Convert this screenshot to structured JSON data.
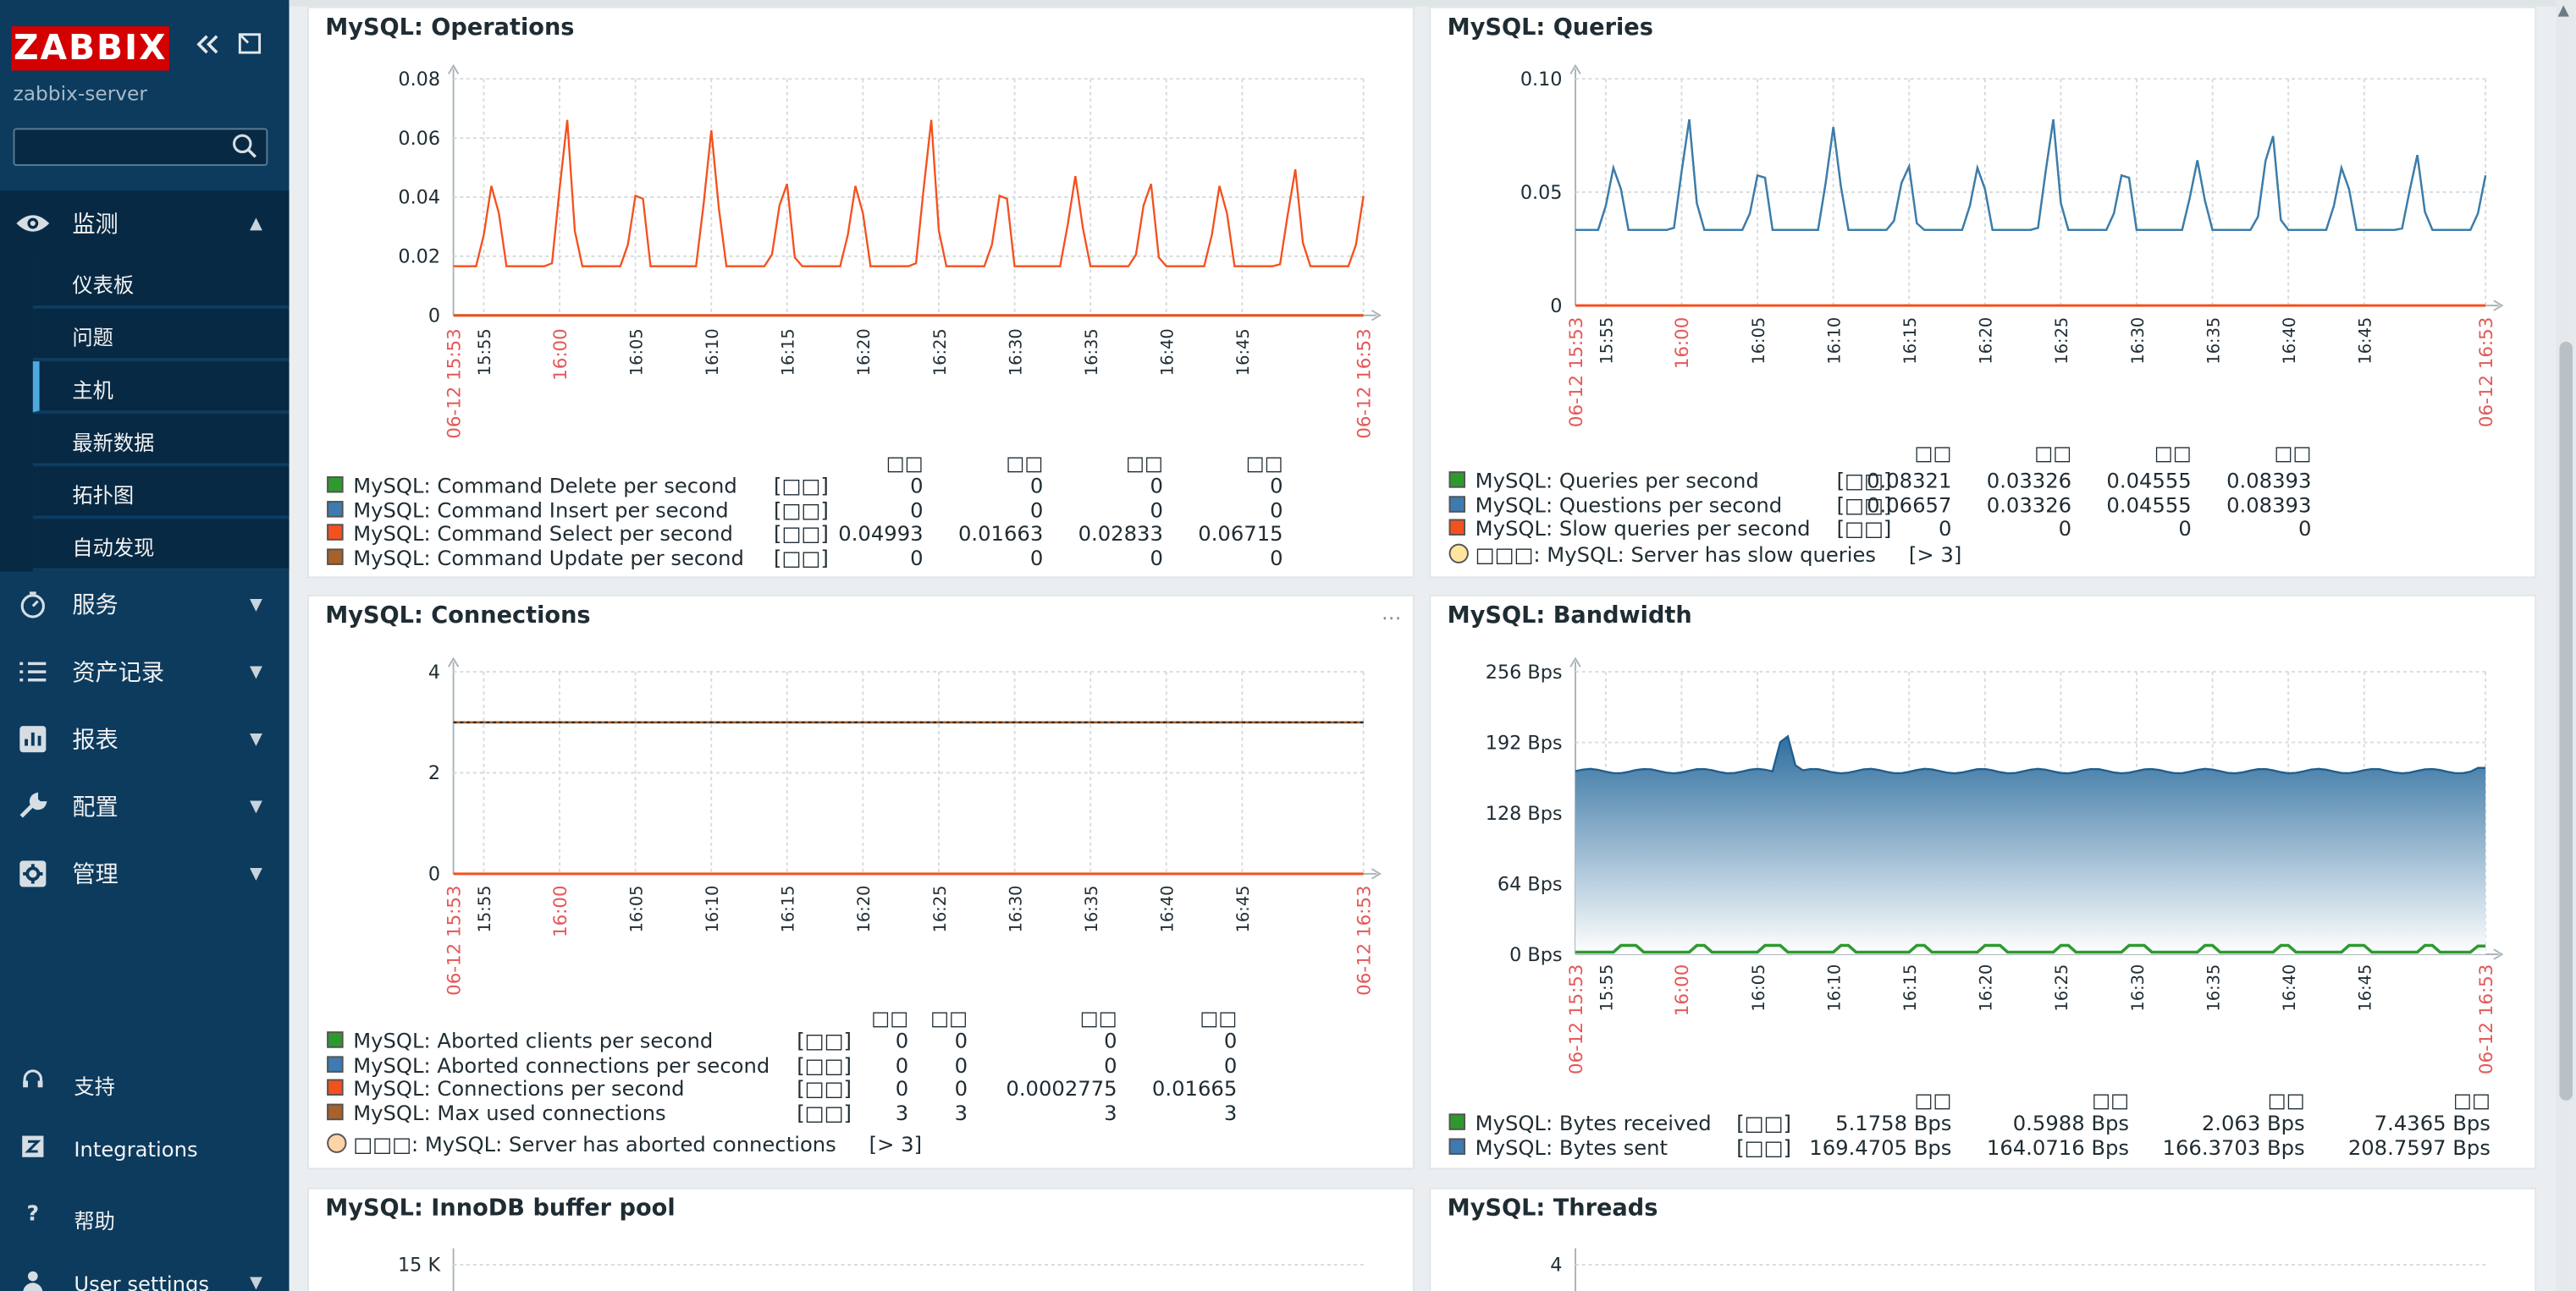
{
  "app": {
    "logo": "ZABBIX",
    "server_name": "zabbix-server"
  },
  "sidebar": {
    "search": {
      "placeholder": "",
      "value": ""
    },
    "monitoring": {
      "label": "监测",
      "items": [
        "仪表板",
        "问题",
        "主机",
        "最新数据",
        "拓扑图",
        "自动发现"
      ],
      "active_item": "主机"
    },
    "menu": [
      {
        "label": "服务",
        "icon": "stopwatch-icon"
      },
      {
        "label": "资产记录",
        "icon": "list-icon"
      },
      {
        "label": "报表",
        "icon": "bar-chart-icon"
      },
      {
        "label": "配置",
        "icon": "wrench-icon"
      },
      {
        "label": "管理",
        "icon": "gear-icon"
      }
    ],
    "footer": [
      {
        "label": "支持",
        "icon": "headset-icon"
      },
      {
        "label": "Integrations",
        "icon": "z-icon"
      },
      {
        "label": "帮助",
        "icon": "help-icon"
      },
      {
        "label": "User settings",
        "icon": "user-icon"
      }
    ]
  },
  "time_axis": {
    "start": "06-12 15:53",
    "end": "06-12 16:53",
    "ticks": [
      "15:55",
      "16:00",
      "16:05",
      "16:10",
      "16:15",
      "16:20",
      "16:25",
      "16:30",
      "16:35",
      "16:40",
      "16:45"
    ],
    "highlight_tick": "16:00"
  },
  "legend_headers": [
    "□□",
    "□□",
    "□□",
    "□□"
  ],
  "legend_function": "[□□]",
  "widgets": {
    "operations": {
      "title": "MySQL: Operations",
      "menu": "⋯",
      "yticks": [
        "0.08",
        "0.06",
        "0.04",
        "0.02",
        "0"
      ],
      "series": [
        {
          "name": "MySQL: Command Delete per second",
          "color": "#2e9a2e",
          "values": [
            "0",
            "0",
            "0",
            "0"
          ]
        },
        {
          "name": "MySQL: Command Insert per second",
          "color": "#3e7bb0",
          "values": [
            "0",
            "0",
            "0",
            "0"
          ]
        },
        {
          "name": "MySQL: Command Select per second",
          "color": "#f4511e",
          "values": [
            "0.04993",
            "0.01663",
            "0.02833",
            "0.06715"
          ]
        },
        {
          "name": "MySQL: Command Update per second",
          "color": "#a86128",
          "values": [
            "0",
            "0",
            "0",
            "0"
          ]
        }
      ]
    },
    "queries": {
      "title": "MySQL: Queries",
      "yticks": [
        "0.10",
        "0.05",
        "0"
      ],
      "series": [
        {
          "name": "MySQL: Queries per second",
          "color": "#2e9a2e",
          "values": [
            "0.08321",
            "0.03326",
            "0.04555",
            "0.08393"
          ]
        },
        {
          "name": "MySQL: Questions per second",
          "color": "#3e7bb0",
          "values": [
            "0.06657",
            "0.03326",
            "0.04555",
            "0.08393"
          ]
        },
        {
          "name": "MySQL: Slow queries per second",
          "color": "#f4511e",
          "values": [
            "0",
            "0",
            "0",
            "0"
          ]
        }
      ],
      "trigger": {
        "label": "□□□: MySQL: Server has slow queries",
        "threshold": "[> 3]",
        "color": "#ffe4a0"
      }
    },
    "connections": {
      "title": "MySQL: Connections",
      "menu": "⋯",
      "yticks": [
        "4",
        "2",
        "0"
      ],
      "series": [
        {
          "name": "MySQL: Aborted clients per second",
          "color": "#2e9a2e",
          "values": [
            "0",
            "0",
            "0",
            "0"
          ]
        },
        {
          "name": "MySQL: Aborted connections per second",
          "color": "#3e7bb0",
          "values": [
            "0",
            "0",
            "0",
            "0"
          ]
        },
        {
          "name": "MySQL: Connections per second",
          "color": "#f4511e",
          "values": [
            "0",
            "0",
            "0.0002775",
            "0.01665"
          ]
        },
        {
          "name": "MySQL: Max used connections",
          "color": "#a86128",
          "values": [
            "3",
            "3",
            "3",
            "3"
          ]
        }
      ],
      "trigger": {
        "label": "□□□: MySQL: Server has aborted connections",
        "threshold": "[> 3]",
        "color": "#ffd3a8"
      }
    },
    "bandwidth": {
      "title": "MySQL: Bandwidth",
      "yticks": [
        "256 Bps",
        "192 Bps",
        "128 Bps",
        "64 Bps",
        "0 Bps"
      ],
      "series": [
        {
          "name": "MySQL: Bytes received",
          "color": "#2e9a2e",
          "values": [
            "5.1758 Bps",
            "0.5988 Bps",
            "2.063 Bps",
            "7.4365 Bps"
          ]
        },
        {
          "name": "MySQL: Bytes sent",
          "color": "#3e7bb0",
          "values": [
            "169.4705 Bps",
            "164.0716 Bps",
            "166.3703 Bps",
            "208.7597 Bps"
          ]
        }
      ]
    },
    "innodb": {
      "title": "MySQL: InnoDB buffer pool",
      "yticks": [
        "15 K"
      ]
    },
    "threads": {
      "title": "MySQL: Threads",
      "yticks": [
        "4"
      ]
    }
  }
}
